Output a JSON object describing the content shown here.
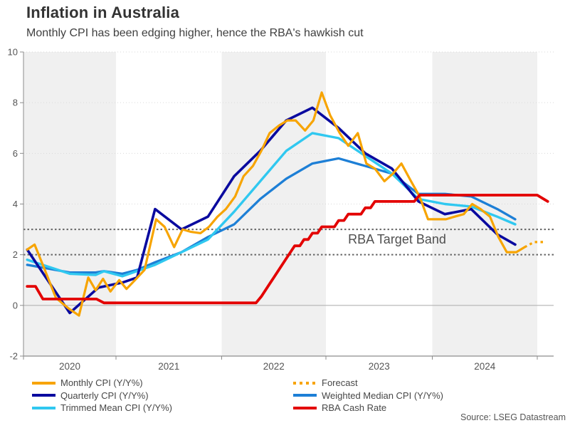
{
  "header": {
    "title": "Inflation in Australia",
    "subtitle": "Monthly CPI has been edging higher, hence the RBA's hawkish cut"
  },
  "source_note": "Source: LSEG Datastream",
  "chart_data": {
    "type": "line",
    "title": "Inflation in Australia",
    "subtitle": "Monthly CPI has been edging higher, hence the RBA's hawkish cut",
    "xlabel": "",
    "ylabel": "",
    "x_range_years": [
      2020.0,
      2025.16
    ],
    "ylim": [
      -2,
      10
    ],
    "y_ticks": [
      10,
      8,
      6,
      4,
      2,
      0,
      -2
    ],
    "x_tick_years": [
      2020,
      2021,
      2022,
      2023,
      2024
    ],
    "grid": "dotted horizontal at even values, solid line at 0",
    "year_shading": [
      2020,
      2022,
      2024
    ],
    "legend_position": "bottom, two columns",
    "annotation": {
      "text": "RBA Target Band",
      "band_low": 2,
      "band_high": 3
    },
    "colors": {
      "monthly": "#f7a400",
      "quarterly": "#0a0a9f",
      "trimmed": "#30c8f0",
      "weighted": "#1d7fd6",
      "cash_rate": "#e30000",
      "band_line": "#666666",
      "grid": "#d9d9d9",
      "zero_line": "#b3b3b3",
      "axis": "#8c8c8c",
      "shade": "#f0f0f0"
    },
    "series": [
      {
        "name": "Weighted Median CPI (Y/Y%)",
        "key": "weighted",
        "style": "solid",
        "width": 3.3,
        "points": [
          [
            2020.04,
            1.6
          ],
          [
            2020.5,
            1.3
          ],
          [
            2020.78,
            1.3
          ],
          [
            2020.87,
            1.35
          ],
          [
            2021.06,
            1.25
          ],
          [
            2021.2,
            1.4
          ],
          [
            2021.37,
            1.7
          ],
          [
            2021.62,
            2.1
          ],
          [
            2021.87,
            2.7
          ],
          [
            2022.12,
            3.2
          ],
          [
            2022.37,
            4.2
          ],
          [
            2022.62,
            5.0
          ],
          [
            2022.87,
            5.6
          ],
          [
            2023.12,
            5.8
          ],
          [
            2023.37,
            5.5
          ],
          [
            2023.62,
            5.2
          ],
          [
            2023.87,
            4.4
          ],
          [
            2024.12,
            4.4
          ],
          [
            2024.37,
            4.3
          ],
          [
            2024.62,
            3.8
          ],
          [
            2024.79,
            3.4
          ]
        ]
      },
      {
        "name": "Trimmed Mean CPI (Y/Y%)",
        "key": "trimmed",
        "style": "solid",
        "width": 3.4,
        "points": [
          [
            2020.04,
            1.8
          ],
          [
            2020.5,
            1.25
          ],
          [
            2020.78,
            1.2
          ],
          [
            2020.87,
            1.35
          ],
          [
            2021.06,
            1.15
          ],
          [
            2021.37,
            1.6
          ],
          [
            2021.62,
            2.1
          ],
          [
            2021.87,
            2.6
          ],
          [
            2022.12,
            3.7
          ],
          [
            2022.37,
            4.9
          ],
          [
            2022.62,
            6.1
          ],
          [
            2022.87,
            6.8
          ],
          [
            2023.12,
            6.6
          ],
          [
            2023.37,
            5.9
          ],
          [
            2023.62,
            5.2
          ],
          [
            2023.87,
            4.2
          ],
          [
            2024.12,
            4.0
          ],
          [
            2024.37,
            3.9
          ],
          [
            2024.62,
            3.5
          ],
          [
            2024.79,
            3.2
          ]
        ]
      },
      {
        "name": "Quarterly CPI (Y/Y%)",
        "key": "quarterly",
        "style": "solid",
        "width": 3.6,
        "points": [
          [
            2020.04,
            2.2
          ],
          [
            2020.5,
            -0.3
          ],
          [
            2020.81,
            0.7
          ],
          [
            2021.06,
            0.9
          ],
          [
            2021.2,
            1.1
          ],
          [
            2021.37,
            3.8
          ],
          [
            2021.62,
            3.0
          ],
          [
            2021.87,
            3.5
          ],
          [
            2022.12,
            5.1
          ],
          [
            2022.37,
            6.1
          ],
          [
            2022.62,
            7.3
          ],
          [
            2022.87,
            7.8
          ],
          [
            2023.12,
            7.0
          ],
          [
            2023.37,
            6.0
          ],
          [
            2023.62,
            5.4
          ],
          [
            2023.87,
            4.1
          ],
          [
            2024.12,
            3.6
          ],
          [
            2024.37,
            3.8
          ],
          [
            2024.62,
            2.8
          ],
          [
            2024.79,
            2.4
          ]
        ]
      },
      {
        "name": "Monthly CPI (Y/Y%)",
        "key": "monthly",
        "style": "solid",
        "width": 3.2,
        "points": [
          [
            2020.04,
            2.2
          ],
          [
            2020.12,
            2.4
          ],
          [
            2020.22,
            1.5
          ],
          [
            2020.35,
            0.3
          ],
          [
            2020.48,
            -0.1
          ],
          [
            2020.6,
            -0.4
          ],
          [
            2020.7,
            1.1
          ],
          [
            2020.78,
            0.6
          ],
          [
            2020.86,
            1.05
          ],
          [
            2020.94,
            0.55
          ],
          [
            2021.03,
            1.0
          ],
          [
            2021.1,
            0.65
          ],
          [
            2021.18,
            1.0
          ],
          [
            2021.27,
            1.4
          ],
          [
            2021.38,
            3.4
          ],
          [
            2021.46,
            3.1
          ],
          [
            2021.55,
            2.3
          ],
          [
            2021.63,
            3.0
          ],
          [
            2021.71,
            2.9
          ],
          [
            2021.8,
            2.85
          ],
          [
            2021.88,
            3.1
          ],
          [
            2021.96,
            3.5
          ],
          [
            2022.04,
            3.8
          ],
          [
            2022.13,
            4.3
          ],
          [
            2022.21,
            5.1
          ],
          [
            2022.3,
            5.5
          ],
          [
            2022.38,
            6.1
          ],
          [
            2022.46,
            6.8
          ],
          [
            2022.55,
            7.1
          ],
          [
            2022.63,
            7.3
          ],
          [
            2022.71,
            7.3
          ],
          [
            2022.8,
            6.9
          ],
          [
            2022.88,
            7.3
          ],
          [
            2022.96,
            8.4
          ],
          [
            2023.04,
            7.5
          ],
          [
            2023.13,
            6.8
          ],
          [
            2023.21,
            6.3
          ],
          [
            2023.3,
            6.8
          ],
          [
            2023.38,
            5.6
          ],
          [
            2023.46,
            5.4
          ],
          [
            2023.55,
            4.9
          ],
          [
            2023.63,
            5.2
          ],
          [
            2023.71,
            5.6
          ],
          [
            2023.8,
            4.9
          ],
          [
            2023.88,
            4.3
          ],
          [
            2023.96,
            3.4
          ],
          [
            2024.04,
            3.4
          ],
          [
            2024.13,
            3.4
          ],
          [
            2024.21,
            3.5
          ],
          [
            2024.3,
            3.6
          ],
          [
            2024.38,
            4.0
          ],
          [
            2024.46,
            3.8
          ],
          [
            2024.55,
            3.5
          ],
          [
            2024.63,
            2.7
          ],
          [
            2024.71,
            2.1
          ],
          [
            2024.8,
            2.1
          ],
          [
            2024.88,
            2.3
          ]
        ]
      },
      {
        "name": "Forecast",
        "key": "monthly",
        "style": "dotted",
        "width": 3.2,
        "points": [
          [
            2024.88,
            2.3
          ],
          [
            2024.97,
            2.5
          ],
          [
            2025.06,
            2.5
          ]
        ]
      },
      {
        "name": "RBA Cash Rate",
        "key": "cash_rate",
        "style": "solid",
        "width": 3.8,
        "points": [
          [
            2020.04,
            0.75
          ],
          [
            2020.13,
            0.75
          ],
          [
            2020.21,
            0.25
          ],
          [
            2020.79,
            0.25
          ],
          [
            2020.87,
            0.1
          ],
          [
            2022.33,
            0.1
          ],
          [
            2022.38,
            0.35
          ],
          [
            2022.46,
            0.85
          ],
          [
            2022.54,
            1.35
          ],
          [
            2022.62,
            1.85
          ],
          [
            2022.7,
            2.35
          ],
          [
            2022.75,
            2.35
          ],
          [
            2022.79,
            2.6
          ],
          [
            2022.83,
            2.6
          ],
          [
            2022.87,
            2.85
          ],
          [
            2022.92,
            2.85
          ],
          [
            2022.96,
            3.1
          ],
          [
            2023.08,
            3.1
          ],
          [
            2023.12,
            3.35
          ],
          [
            2023.17,
            3.35
          ],
          [
            2023.21,
            3.6
          ],
          [
            2023.33,
            3.6
          ],
          [
            2023.37,
            3.85
          ],
          [
            2023.42,
            3.85
          ],
          [
            2023.46,
            4.1
          ],
          [
            2023.83,
            4.1
          ],
          [
            2023.88,
            4.35
          ],
          [
            2025.0,
            4.35
          ],
          [
            2025.1,
            4.1
          ]
        ]
      }
    ],
    "legend": [
      {
        "label": "Monthly CPI (Y/Y%)",
        "key": "monthly",
        "dotted": false,
        "col": 0,
        "row": 0
      },
      {
        "label": "Quarterly CPI (Y/Y%)",
        "key": "quarterly",
        "dotted": false,
        "col": 0,
        "row": 1
      },
      {
        "label": "Trimmed Mean CPI (Y/Y%)",
        "key": "trimmed",
        "dotted": false,
        "col": 0,
        "row": 2
      },
      {
        "label": "Forecast",
        "key": "monthly",
        "dotted": true,
        "col": 1,
        "row": 0
      },
      {
        "label": "Weighted Median CPI (Y/Y%)",
        "key": "weighted",
        "dotted": false,
        "col": 1,
        "row": 1
      },
      {
        "label": "RBA Cash Rate",
        "key": "cash_rate",
        "dotted": false,
        "col": 1,
        "row": 2
      }
    ]
  }
}
